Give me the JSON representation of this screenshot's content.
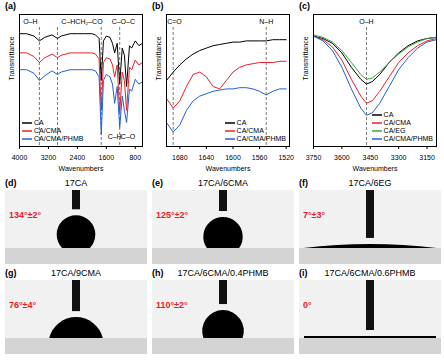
{
  "chart_data": [
    {
      "type": "line",
      "panel_label": "(a)",
      "x_label": "Wavenumbers",
      "y_label": "Transmittance",
      "tick_labels": "x",
      "legend": "bottom-left",
      "xlim": [
        4000,
        600
      ],
      "xticks": [
        4000,
        3200,
        2400,
        1600,
        800
      ],
      "ylim": [
        0,
        110
      ],
      "yticks": [],
      "x": [
        4000,
        3800,
        3600,
        3450,
        3300,
        3100,
        2950,
        2850,
        2600,
        2400,
        2200,
        2000,
        1900,
        1800,
        1740,
        1680,
        1600,
        1500,
        1430,
        1370,
        1300,
        1230,
        1160,
        1100,
        1040,
        960,
        900,
        800,
        700,
        600
      ],
      "series": [
        {
          "name": "CA",
          "color": "#000000",
          "values": [
            94,
            94,
            92,
            88,
            91,
            93,
            90,
            92,
            94,
            94,
            94,
            94,
            93,
            90,
            55,
            88,
            92,
            91,
            86,
            78,
            86,
            52,
            82,
            76,
            50,
            84,
            82,
            88,
            84,
            86
          ]
        },
        {
          "name": "CA/CMA",
          "color": "#e8202a",
          "values": [
            78,
            78,
            75,
            70,
            74,
            77,
            74,
            76,
            78,
            78,
            78,
            78,
            77,
            73,
            30,
            70,
            74,
            73,
            68,
            58,
            68,
            28,
            62,
            55,
            30,
            66,
            64,
            72,
            68,
            70
          ]
        },
        {
          "name": "CA/CMA/PHMB",
          "color": "#2060d8",
          "values": [
            64,
            64,
            61,
            55,
            59,
            63,
            60,
            62,
            64,
            64,
            64,
            64,
            63,
            58,
            10,
            55,
            60,
            58,
            52,
            36,
            50,
            16,
            42,
            30,
            20,
            48,
            46,
            56,
            52,
            54
          ]
        }
      ],
      "vlines": [
        3450,
        2950,
        1740,
        1230
      ],
      "annotations": [
        {
          "text": "O–H",
          "x": 3700,
          "y": 104
        },
        {
          "text": "C–H",
          "x": 2650,
          "y": 104
        },
        {
          "text": "CH₂–CO",
          "x": 2080,
          "y": 104
        },
        {
          "text": "C–O–C",
          "x": 1130,
          "y": 104
        },
        {
          "text": "C–H",
          "x": 1370,
          "y": 8
        },
        {
          "text": "C–O",
          "x": 1000,
          "y": 8
        }
      ]
    },
    {
      "type": "line",
      "panel_label": "(b)",
      "x_label": "Wavenumbers",
      "y_label": "Transmittance",
      "tick_labels": "x",
      "legend": "bottom-right",
      "xlim": [
        1700,
        1515
      ],
      "xticks": [
        1680,
        1640,
        1600,
        1560,
        1520
      ],
      "ylim": [
        0,
        110
      ],
      "yticks": [],
      "x": [
        1700,
        1690,
        1680,
        1670,
        1660,
        1650,
        1640,
        1630,
        1620,
        1610,
        1600,
        1590,
        1580,
        1570,
        1560,
        1550,
        1540,
        1530,
        1520
      ],
      "series": [
        {
          "name": "CA",
          "color": "#000000",
          "values": [
            55,
            62,
            68,
            73,
            77,
            80,
            82,
            84,
            85,
            86,
            87,
            87,
            88,
            88,
            88,
            88,
            89,
            89,
            89
          ]
        },
        {
          "name": "CA/CMA",
          "color": "#e8202a",
          "values": [
            40,
            32,
            38,
            50,
            60,
            62,
            58,
            50,
            48,
            55,
            62,
            66,
            68,
            69,
            70,
            70,
            70,
            71,
            71
          ]
        },
        {
          "name": "CA/CMA/PHMB",
          "color": "#2060d8",
          "values": [
            20,
            12,
            18,
            30,
            38,
            42,
            44,
            46,
            47,
            48,
            48,
            49,
            49,
            48,
            46,
            43,
            46,
            48,
            48
          ]
        }
      ],
      "vlines": [
        1690,
        1550
      ],
      "annotations": [
        {
          "text": "C=O",
          "x": 1688,
          "y": 104
        },
        {
          "text": "N–H",
          "x": 1550,
          "y": 104
        }
      ]
    },
    {
      "type": "line",
      "panel_label": "(c)",
      "x_label": "Wavenumbers",
      "y_label": "Transmittance",
      "tick_labels": "x",
      "legend": "bottom-right",
      "xlim": [
        3750,
        3100
      ],
      "xticks": [
        3750,
        3600,
        3450,
        3300,
        3150
      ],
      "ylim": [
        0,
        110
      ],
      "yticks": [],
      "x": [
        3750,
        3700,
        3650,
        3600,
        3550,
        3500,
        3470,
        3440,
        3400,
        3350,
        3300,
        3250,
        3200,
        3150,
        3100
      ],
      "series": [
        {
          "name": "CA",
          "color": "#000000",
          "values": [
            92,
            90,
            86,
            78,
            66,
            56,
            52,
            54,
            60,
            70,
            78,
            84,
            88,
            90,
            91
          ]
        },
        {
          "name": "CA/CMA",
          "color": "#e8202a",
          "values": [
            92,
            89,
            83,
            72,
            56,
            42,
            36,
            38,
            46,
            58,
            70,
            78,
            84,
            88,
            90
          ]
        },
        {
          "name": "CA/EG",
          "color": "#3aa83a",
          "values": [
            93,
            91,
            87,
            80,
            70,
            60,
            56,
            57,
            62,
            70,
            77,
            83,
            87,
            90,
            91
          ]
        },
        {
          "name": "CA/CMA/PHMB",
          "color": "#2060d8",
          "values": [
            92,
            88,
            80,
            66,
            48,
            32,
            26,
            28,
            36,
            50,
            64,
            74,
            82,
            87,
            89
          ]
        }
      ],
      "vlines": [
        3470
      ],
      "annotations": [
        {
          "text": "O–H",
          "x": 3470,
          "y": 104
        }
      ]
    }
  ],
  "contact_angle_images": [
    {
      "panel_label": "(d)",
      "title": "17CA",
      "angle": 134,
      "angle_label": "134°±2°"
    },
    {
      "panel_label": "(e)",
      "title": "17CA/6CMA",
      "angle": 125,
      "angle_label": "125°±2°"
    },
    {
      "panel_label": "(f)",
      "title": "17CA/6EG",
      "angle": 7,
      "angle_label": "7°±3°"
    },
    {
      "panel_label": "(g)",
      "title": "17CA/9CMA",
      "angle": 76,
      "angle_label": "76°±4°"
    },
    {
      "panel_label": "(h)",
      "title": "17CA/6CMA/0.4PHMB",
      "angle": 110,
      "angle_label": "110°±2°"
    },
    {
      "panel_label": "(i)",
      "title": "17CA/6CMA/0.6PHMB",
      "angle": 0,
      "angle_label": "0°"
    }
  ]
}
